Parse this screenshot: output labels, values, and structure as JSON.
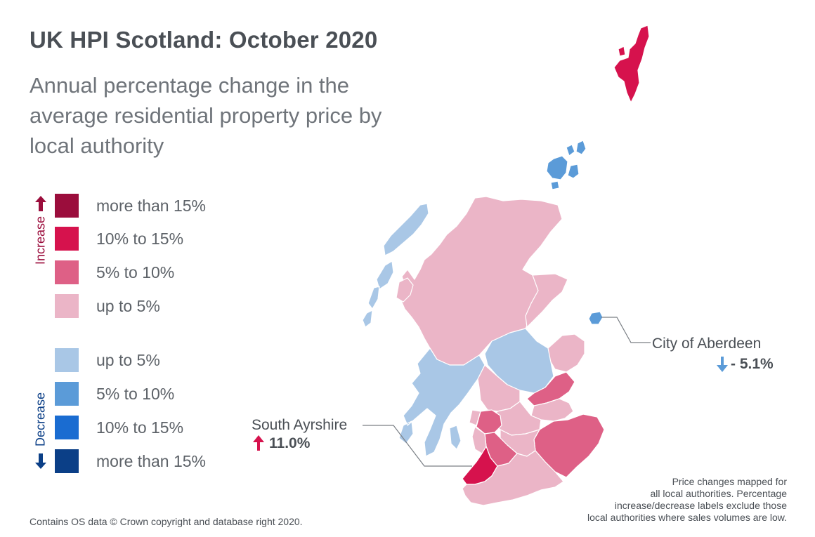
{
  "title": "UK HPI Scotland: October 2020",
  "subtitle": "Annual percentage change in the average residential property price by local authority",
  "legend": {
    "increase_label": "Increase",
    "decrease_label": "Decrease",
    "items": [
      {
        "label": "more than 15%",
        "color": "#9b0d3c"
      },
      {
        "label": "10% to 15%",
        "color": "#d6124d"
      },
      {
        "label": "5% to 10%",
        "color": "#de6086"
      },
      {
        "label": "up to 5%",
        "color": "#ebb5c7"
      },
      {
        "label": "up to 5%",
        "color": "#a9c7e6"
      },
      {
        "label": "5% to 10%",
        "color": "#5b9bd8"
      },
      {
        "label": "10% to 15%",
        "color": "#1a6cd1"
      },
      {
        "label": "more than 15%",
        "color": "#0b3f87"
      }
    ]
  },
  "callouts": {
    "aberdeen": {
      "name": "City of Aberdeen",
      "value": "- 5.1%",
      "direction": "decrease"
    },
    "south_ayrshire": {
      "name": "South Ayrshire",
      "value": "11.0%",
      "direction": "increase"
    }
  },
  "footnote": "Contains OS data © Crown copyright and database right 2020.",
  "note": [
    "Price changes mapped for",
    "all local authorities. Percentage",
    "increase/decrease labels exclude those",
    "local authorities where sales volumes are low."
  ],
  "colors": {
    "increase_arrow": "#9b0d3c",
    "decrease_arrow": "#0b3f87",
    "callout_up": "#d6124d",
    "callout_down": "#5b9bd8",
    "outline": "#ffffff"
  }
}
